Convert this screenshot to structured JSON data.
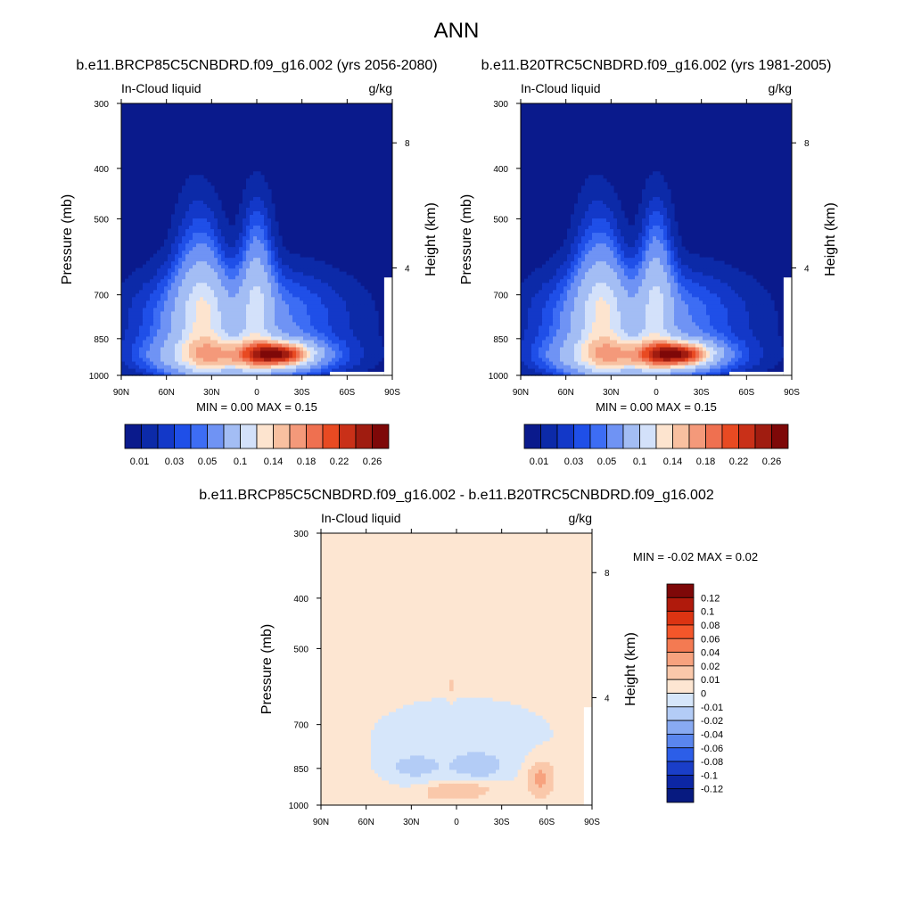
{
  "figure": {
    "title": "ANN"
  },
  "chart_data": [
    {
      "type": "contour",
      "title": "b.e11.BRCP85C5CNBDRD.f09_g16.002 (yrs 2056-2080)",
      "left_label": "In-Cloud liquid",
      "right_label": "g/kg",
      "ylabel": "Pressure (mb)",
      "ylabel_right": "Height (km)",
      "x_ticks": [
        "90N",
        "60N",
        "30N",
        "0",
        "30S",
        "60S",
        "90S"
      ],
      "y_ticks": [
        "300",
        "400",
        "500",
        "700",
        "850",
        "1000"
      ],
      "y_ticks_right": [
        "8",
        "4"
      ],
      "min_max": "MIN =   0.00  MAX =   0.15",
      "colorbar_labels": [
        "0.01",
        "0.03",
        "0.05",
        "0.1",
        "0.14",
        "0.18",
        "0.22",
        "0.26"
      ],
      "levels": [
        0.01,
        0.02,
        0.03,
        0.04,
        0.05,
        0.07,
        0.1,
        0.12,
        0.14,
        0.16,
        0.18,
        0.2,
        0.22,
        0.24,
        0.26
      ],
      "colors": [
        "#0a1a8c",
        "#0c2aa8",
        "#1338c8",
        "#1f4fe8",
        "#3d6df4",
        "#6f93f4",
        "#a3bdf4",
        "#d3e1fa",
        "#fde4cf",
        "#f8c0a0",
        "#f4997a",
        "#ef7050",
        "#e84a22",
        "#c93018",
        "#a01c10",
        "#7e0808"
      ],
      "ylim": [
        300,
        1000
      ],
      "xlim": [
        "90N",
        "90S"
      ]
    },
    {
      "type": "contour",
      "title": "b.e11.B20TRC5CNBDRD.f09_g16.002 (yrs 1981-2005)",
      "left_label": "In-Cloud liquid",
      "right_label": "g/kg",
      "ylabel": "Pressure (mb)",
      "ylabel_right": "Height (km)",
      "x_ticks": [
        "90N",
        "60N",
        "30N",
        "0",
        "30S",
        "60S",
        "90S"
      ],
      "y_ticks": [
        "300",
        "400",
        "500",
        "700",
        "850",
        "1000"
      ],
      "y_ticks_right": [
        "8",
        "4"
      ],
      "min_max": "MIN =   0.00  MAX =   0.15",
      "colorbar_labels": [
        "0.01",
        "0.03",
        "0.05",
        "0.1",
        "0.14",
        "0.18",
        "0.22",
        "0.26"
      ],
      "levels": [
        0.01,
        0.02,
        0.03,
        0.04,
        0.05,
        0.07,
        0.1,
        0.12,
        0.14,
        0.16,
        0.18,
        0.2,
        0.22,
        0.24,
        0.26
      ],
      "colors": [
        "#0a1a8c",
        "#0c2aa8",
        "#1338c8",
        "#1f4fe8",
        "#3d6df4",
        "#6f93f4",
        "#a3bdf4",
        "#d3e1fa",
        "#fde4cf",
        "#f8c0a0",
        "#f4997a",
        "#ef7050",
        "#e84a22",
        "#c93018",
        "#a01c10",
        "#7e0808"
      ],
      "ylim": [
        300,
        1000
      ],
      "xlim": [
        "90N",
        "90S"
      ]
    },
    {
      "type": "contour",
      "title": "b.e11.BRCP85C5CNBDRD.f09_g16.002 - b.e11.B20TRC5CNBDRD.f09_g16.002",
      "left_label": "In-Cloud liquid",
      "right_label": "g/kg",
      "ylabel": "Pressure (mb)",
      "ylabel_right": "Height (km)",
      "x_ticks": [
        "90N",
        "60N",
        "30N",
        "0",
        "30S",
        "60S",
        "90S"
      ],
      "y_ticks": [
        "300",
        "400",
        "500",
        "700",
        "850",
        "1000"
      ],
      "y_ticks_right": [
        "8",
        "4"
      ],
      "min_max": "MIN =  -0.02  MAX =   0.02",
      "colorbar_labels": [
        "0.12",
        "0.1",
        "0.08",
        "0.06",
        "0.04",
        "0.02",
        "0.01",
        "0",
        "-0.01",
        "-0.02",
        "-0.04",
        "-0.06",
        "-0.08",
        "-0.1",
        "-0.12"
      ],
      "levels": [
        0.12,
        0.1,
        0.08,
        0.06,
        0.04,
        0.02,
        0.01,
        0,
        -0.01,
        -0.02,
        -0.04,
        -0.06,
        -0.08,
        -0.1,
        -0.12
      ],
      "colors": [
        "#7e0808",
        "#b01a0c",
        "#dc3412",
        "#f4562a",
        "#f47a52",
        "#f7a27e",
        "#fac8aa",
        "#fde6d2",
        "#d6e6fa",
        "#b3ccf6",
        "#88aaf2",
        "#5a86ee",
        "#2c5ee8",
        "#1a3ec8",
        "#0c26a4",
        "#071a80"
      ],
      "ylim": [
        300,
        1000
      ],
      "xlim": [
        "90N",
        "90S"
      ]
    }
  ]
}
